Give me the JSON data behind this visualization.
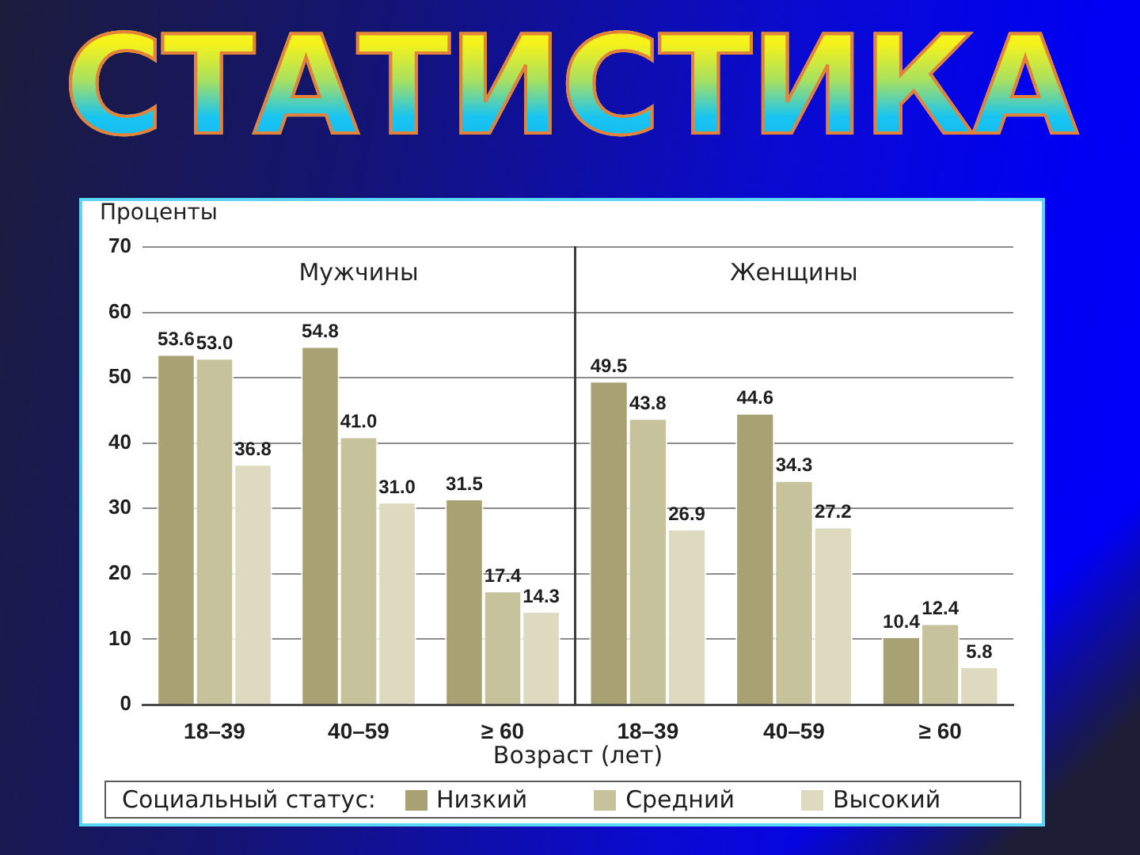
{
  "chart_data": [
    {
      "type": "other",
      "title": "СТАТИСТИКА"
    },
    {
      "type": "bar",
      "title": "Мужчины",
      "ylabel": "Проценты",
      "xlabel": "Возраст (лет)",
      "categories": [
        "18–39",
        "40–59",
        "≥ 60"
      ],
      "series": [
        {
          "name": "Низкий",
          "color": "#a8a173",
          "values": [
            53.6,
            54.8,
            31.5
          ],
          "value_labels": [
            "53.6",
            "54.8",
            "31.5"
          ]
        },
        {
          "name": "Средний",
          "color": "#c6c29b",
          "values": [
            53.0,
            41.0,
            17.4
          ],
          "value_labels": [
            "53.0",
            "41.0",
            "17.4"
          ]
        },
        {
          "name": "Высокий",
          "color": "#dedabf",
          "values": [
            36.8,
            31.0,
            14.3
          ],
          "value_labels": [
            "36.8",
            "31.0",
            "14.3"
          ]
        }
      ],
      "ylim": [
        0,
        70
      ],
      "yticks": [
        0,
        10,
        20,
        30,
        40,
        50,
        60,
        70
      ],
      "grid": "y",
      "legend": "bottom",
      "legend_title": "Социальный статус:"
    },
    {
      "type": "bar",
      "title": "Женщины",
      "categories": [
        "18–39",
        "40–59",
        "≥ 60"
      ],
      "series": [
        {
          "color": "#a8a173",
          "values": [
            49.5,
            44.6,
            10.4
          ],
          "value_labels": [
            "49.5",
            "44.6",
            "10.4"
          ]
        },
        {
          "color": "#c6c29b",
          "values": [
            43.8,
            34.3,
            12.4
          ],
          "value_labels": [
            "43.8",
            "34.3",
            "12.4"
          ]
        },
        {
          "color": "#dedabf",
          "values": [
            26.9,
            27.2,
            5.8
          ],
          "value_labels": [
            "26.9",
            "27.2",
            "5.8"
          ]
        }
      ],
      "ylim": [
        0,
        70
      ],
      "yticks": [
        0,
        10,
        20,
        30,
        40,
        50,
        60,
        70
      ],
      "grid": "y",
      "tick_labels": "x"
    }
  ]
}
